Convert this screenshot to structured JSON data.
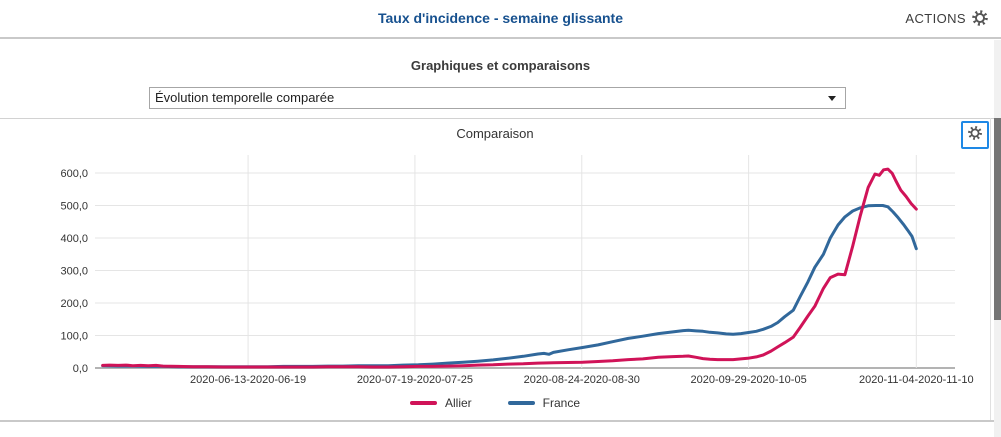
{
  "header": {
    "title": "Taux d'incidence - semaine glissante",
    "actions_label": "ACTIONS",
    "title_color": "#17518f"
  },
  "section": {
    "title": "Graphiques et comparaisons",
    "select_value": "Évolution temporelle comparée"
  },
  "panel": {
    "title": "Comparaison",
    "gear_icon": "settings-icon"
  },
  "colors": {
    "allier": "#d01358",
    "france": "#31689b",
    "grid": "#e5e5e5",
    "axis": "#b3b3b3",
    "tick_text": "#333333"
  },
  "chart_data": {
    "type": "line",
    "title": "Comparaison",
    "xlabel": "",
    "ylabel": "",
    "ylim": [
      0,
      655
    ],
    "grid": true,
    "legend_position": "bottom",
    "y_ticks": [
      {
        "label": "600,0",
        "value": 600
      },
      {
        "label": "500,0",
        "value": 500
      },
      {
        "label": "400,0",
        "value": 400
      },
      {
        "label": "300,0",
        "value": 300
      },
      {
        "label": "200,0",
        "value": 200
      },
      {
        "label": "100,0",
        "value": 100
      },
      {
        "label": "0,0",
        "value": 0
      }
    ],
    "x_ticks": [
      {
        "label": "2020-06-13-2020-06-19",
        "pos": 0.178
      },
      {
        "label": "2020-07-19-2020-07-25",
        "pos": 0.372
      },
      {
        "label": "2020-08-24-2020-08-30",
        "pos": 0.566
      },
      {
        "label": "2020-09-29-2020-10-05",
        "pos": 0.76
      },
      {
        "label": "2020-11-04-2020-11-10",
        "pos": 0.955
      }
    ],
    "series": [
      {
        "name": "Allier",
        "color": "#d01358",
        "points": [
          [
            0.009,
            8
          ],
          [
            0.017,
            9
          ],
          [
            0.027,
            8
          ],
          [
            0.036,
            9
          ],
          [
            0.044,
            7
          ],
          [
            0.053,
            8
          ],
          [
            0.062,
            7
          ],
          [
            0.071,
            8
          ],
          [
            0.079,
            6
          ],
          [
            0.097,
            5
          ],
          [
            0.114,
            4
          ],
          [
            0.131,
            4
          ],
          [
            0.149,
            3
          ],
          [
            0.166,
            3
          ],
          [
            0.184,
            3
          ],
          [
            0.201,
            3
          ],
          [
            0.219,
            3
          ],
          [
            0.236,
            3
          ],
          [
            0.253,
            3
          ],
          [
            0.271,
            4
          ],
          [
            0.288,
            4
          ],
          [
            0.306,
            4
          ],
          [
            0.323,
            3
          ],
          [
            0.341,
            3
          ],
          [
            0.358,
            4
          ],
          [
            0.376,
            5
          ],
          [
            0.393,
            5
          ],
          [
            0.41,
            6
          ],
          [
            0.428,
            7
          ],
          [
            0.445,
            9
          ],
          [
            0.463,
            10
          ],
          [
            0.48,
            12
          ],
          [
            0.498,
            13
          ],
          [
            0.515,
            15
          ],
          [
            0.533,
            16
          ],
          [
            0.55,
            17
          ],
          [
            0.567,
            18
          ],
          [
            0.585,
            20
          ],
          [
            0.602,
            22
          ],
          [
            0.62,
            26
          ],
          [
            0.637,
            28
          ],
          [
            0.655,
            33
          ],
          [
            0.672,
            35
          ],
          [
            0.684,
            36
          ],
          [
            0.69,
            37
          ],
          [
            0.699,
            33
          ],
          [
            0.707,
            29
          ],
          [
            0.715,
            27
          ],
          [
            0.724,
            26
          ],
          [
            0.734,
            26
          ],
          [
            0.742,
            26
          ],
          [
            0.751,
            28
          ],
          [
            0.759,
            30
          ],
          [
            0.769,
            34
          ],
          [
            0.777,
            40
          ],
          [
            0.786,
            52
          ],
          [
            0.794,
            65
          ],
          [
            0.802,
            78
          ],
          [
            0.812,
            95
          ],
          [
            0.82,
            125
          ],
          [
            0.829,
            160
          ],
          [
            0.837,
            190
          ],
          [
            0.847,
            245
          ],
          [
            0.855,
            278
          ],
          [
            0.864,
            289
          ],
          [
            0.872,
            287
          ],
          [
            0.881,
            375
          ],
          [
            0.89,
            470
          ],
          [
            0.899,
            555
          ],
          [
            0.907,
            597
          ],
          [
            0.912,
            593
          ],
          [
            0.917,
            610
          ],
          [
            0.922,
            612
          ],
          [
            0.927,
            599
          ],
          [
            0.931,
            577
          ],
          [
            0.937,
            547
          ],
          [
            0.943,
            528
          ],
          [
            0.949,
            506
          ],
          [
            0.955,
            489
          ]
        ]
      },
      {
        "name": "France",
        "color": "#31689b",
        "points": [
          [
            0.009,
            7
          ],
          [
            0.027,
            6
          ],
          [
            0.044,
            6
          ],
          [
            0.062,
            5
          ],
          [
            0.079,
            5
          ],
          [
            0.097,
            4
          ],
          [
            0.114,
            4
          ],
          [
            0.131,
            4
          ],
          [
            0.149,
            4
          ],
          [
            0.166,
            4
          ],
          [
            0.184,
            4
          ],
          [
            0.201,
            4
          ],
          [
            0.219,
            5
          ],
          [
            0.236,
            5
          ],
          [
            0.253,
            5
          ],
          [
            0.271,
            6
          ],
          [
            0.288,
            6
          ],
          [
            0.306,
            7
          ],
          [
            0.323,
            7
          ],
          [
            0.341,
            7
          ],
          [
            0.358,
            9
          ],
          [
            0.376,
            10
          ],
          [
            0.393,
            12
          ],
          [
            0.41,
            15
          ],
          [
            0.428,
            18
          ],
          [
            0.445,
            21
          ],
          [
            0.463,
            25
          ],
          [
            0.48,
            30
          ],
          [
            0.498,
            36
          ],
          [
            0.515,
            43
          ],
          [
            0.522,
            45
          ],
          [
            0.528,
            42
          ],
          [
            0.533,
            48
          ],
          [
            0.55,
            56
          ],
          [
            0.567,
            63
          ],
          [
            0.585,
            71
          ],
          [
            0.602,
            81
          ],
          [
            0.62,
            91
          ],
          [
            0.637,
            98
          ],
          [
            0.655,
            106
          ],
          [
            0.672,
            111
          ],
          [
            0.684,
            115
          ],
          [
            0.69,
            116
          ],
          [
            0.699,
            114
          ],
          [
            0.707,
            113
          ],
          [
            0.715,
            110
          ],
          [
            0.724,
            108
          ],
          [
            0.734,
            105
          ],
          [
            0.742,
            104
          ],
          [
            0.751,
            106
          ],
          [
            0.759,
            109
          ],
          [
            0.769,
            113
          ],
          [
            0.777,
            119
          ],
          [
            0.786,
            128
          ],
          [
            0.794,
            140
          ],
          [
            0.802,
            158
          ],
          [
            0.812,
            178
          ],
          [
            0.82,
            220
          ],
          [
            0.829,
            265
          ],
          [
            0.837,
            310
          ],
          [
            0.847,
            350
          ],
          [
            0.855,
            400
          ],
          [
            0.864,
            440
          ],
          [
            0.872,
            465
          ],
          [
            0.881,
            483
          ],
          [
            0.89,
            493
          ],
          [
            0.899,
            499
          ],
          [
            0.908,
            500
          ],
          [
            0.916,
            500
          ],
          [
            0.922,
            496
          ],
          [
            0.928,
            480
          ],
          [
            0.934,
            462
          ],
          [
            0.94,
            442
          ],
          [
            0.945,
            424
          ],
          [
            0.95,
            405
          ],
          [
            0.955,
            367
          ]
        ]
      }
    ]
  }
}
